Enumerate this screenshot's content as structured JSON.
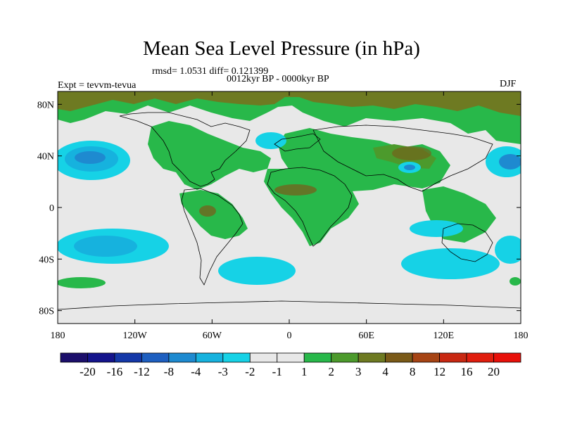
{
  "title": "Mean Sea Level Pressure (in hPa)",
  "stats": "rmsd= 1.0531 diff= 0.121399",
  "period": "0012kyr BP - 0000kyr BP",
  "experiment": "Expt = tevvm-tevua",
  "season": "DJF",
  "map": {
    "lon_range": [
      -180,
      180
    ],
    "lat_range": [
      -90,
      90
    ],
    "x_ticks": [
      {
        "value": -180,
        "label": "180"
      },
      {
        "value": -120,
        "label": "120W"
      },
      {
        "value": -60,
        "label": "60W"
      },
      {
        "value": 0,
        "label": "0"
      },
      {
        "value": 60,
        "label": "60E"
      },
      {
        "value": 120,
        "label": "120E"
      },
      {
        "value": 180,
        "label": "180"
      }
    ],
    "y_ticks": [
      {
        "value": 80,
        "label": "80N"
      },
      {
        "value": 40,
        "label": "40N"
      },
      {
        "value": 0,
        "label": "0"
      },
      {
        "value": -40,
        "label": "40S"
      },
      {
        "value": -80,
        "label": "80S"
      }
    ],
    "background_color": "#e8e8e8"
  },
  "colorbar": {
    "labels": [
      "-20",
      "-16",
      "-12",
      "-8",
      "-4",
      "-3",
      "-2",
      "-1",
      "1",
      "2",
      "3",
      "4",
      "8",
      "12",
      "16",
      "20"
    ],
    "colors": [
      "#1c0f6b",
      "#14148c",
      "#1438a8",
      "#1e5fc0",
      "#1e8ad0",
      "#16b2de",
      "#16d2e6",
      "#e8e8e8",
      "#e8e8e8",
      "#28b84a",
      "#4c9a2c",
      "#6e7a22",
      "#7a5a18",
      "#a64414",
      "#c82812",
      "#e01e0e",
      "#e8100a"
    ]
  }
}
